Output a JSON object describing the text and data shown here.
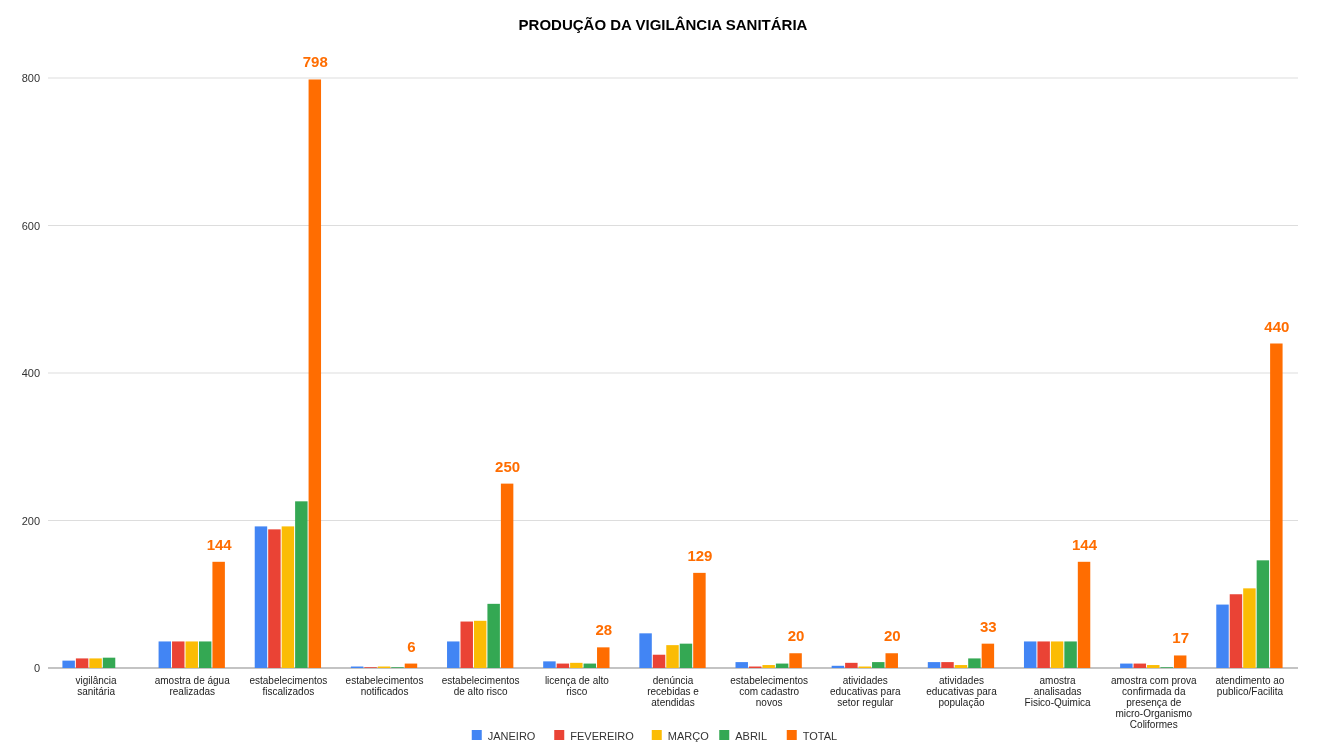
{
  "chart_data": {
    "type": "bar",
    "title": "PRODUÇÃO DA VIGILÂNCIA SANITÁRIA",
    "categories": [
      "vigilância sanitária",
      "amostra de água realizadas",
      "estabelecimentos fiscalizados",
      "estabelecimentos notificados",
      "estabelecimentos de alto risco",
      "licença de alto risco",
      "denúncia recebidas e atendidas",
      "estabelecimentos com cadastro novos",
      "atividades educativas para setor regular",
      "atividades educativas para população",
      "amostra analisadas Fisico-Quimica",
      "amostra com prova confirmada da presença de micro-Organismo Coliformes",
      "atendimento ao publico/Facilita"
    ],
    "series": [
      {
        "name": "JANEIRO",
        "color": "#4285f4",
        "values": [
          10,
          36,
          192,
          2,
          36,
          9,
          47,
          8,
          3,
          8,
          36,
          6,
          86
        ]
      },
      {
        "name": "FEVEREIRO",
        "color": "#ea4335",
        "values": [
          13,
          36,
          188,
          1,
          63,
          6,
          18,
          2,
          7,
          8,
          36,
          6,
          100
        ]
      },
      {
        "name": "MARÇO",
        "color": "#fbbc04",
        "values": [
          13,
          36,
          192,
          2,
          64,
          7,
          31,
          4,
          2,
          4,
          36,
          4,
          108
        ]
      },
      {
        "name": "ABRIL",
        "color": "#34a853",
        "values": [
          14,
          36,
          226,
          1,
          87,
          6,
          33,
          6,
          8,
          13,
          36,
          1,
          146
        ]
      },
      {
        "name": "TOTAL",
        "color": "#ff6d01",
        "values": [
          null,
          144,
          798,
          6,
          250,
          28,
          129,
          20,
          20,
          33,
          144,
          17,
          440
        ],
        "value_labels": [
          null,
          "144",
          "798",
          "6",
          "250",
          "28",
          "129",
          "20",
          "20",
          "33",
          "144",
          "17",
          "440"
        ]
      }
    ],
    "ylim": [
      0,
      800
    ],
    "yticks": [
      0,
      200,
      400,
      600,
      800
    ],
    "grid": "y",
    "legend": "bottom"
  }
}
